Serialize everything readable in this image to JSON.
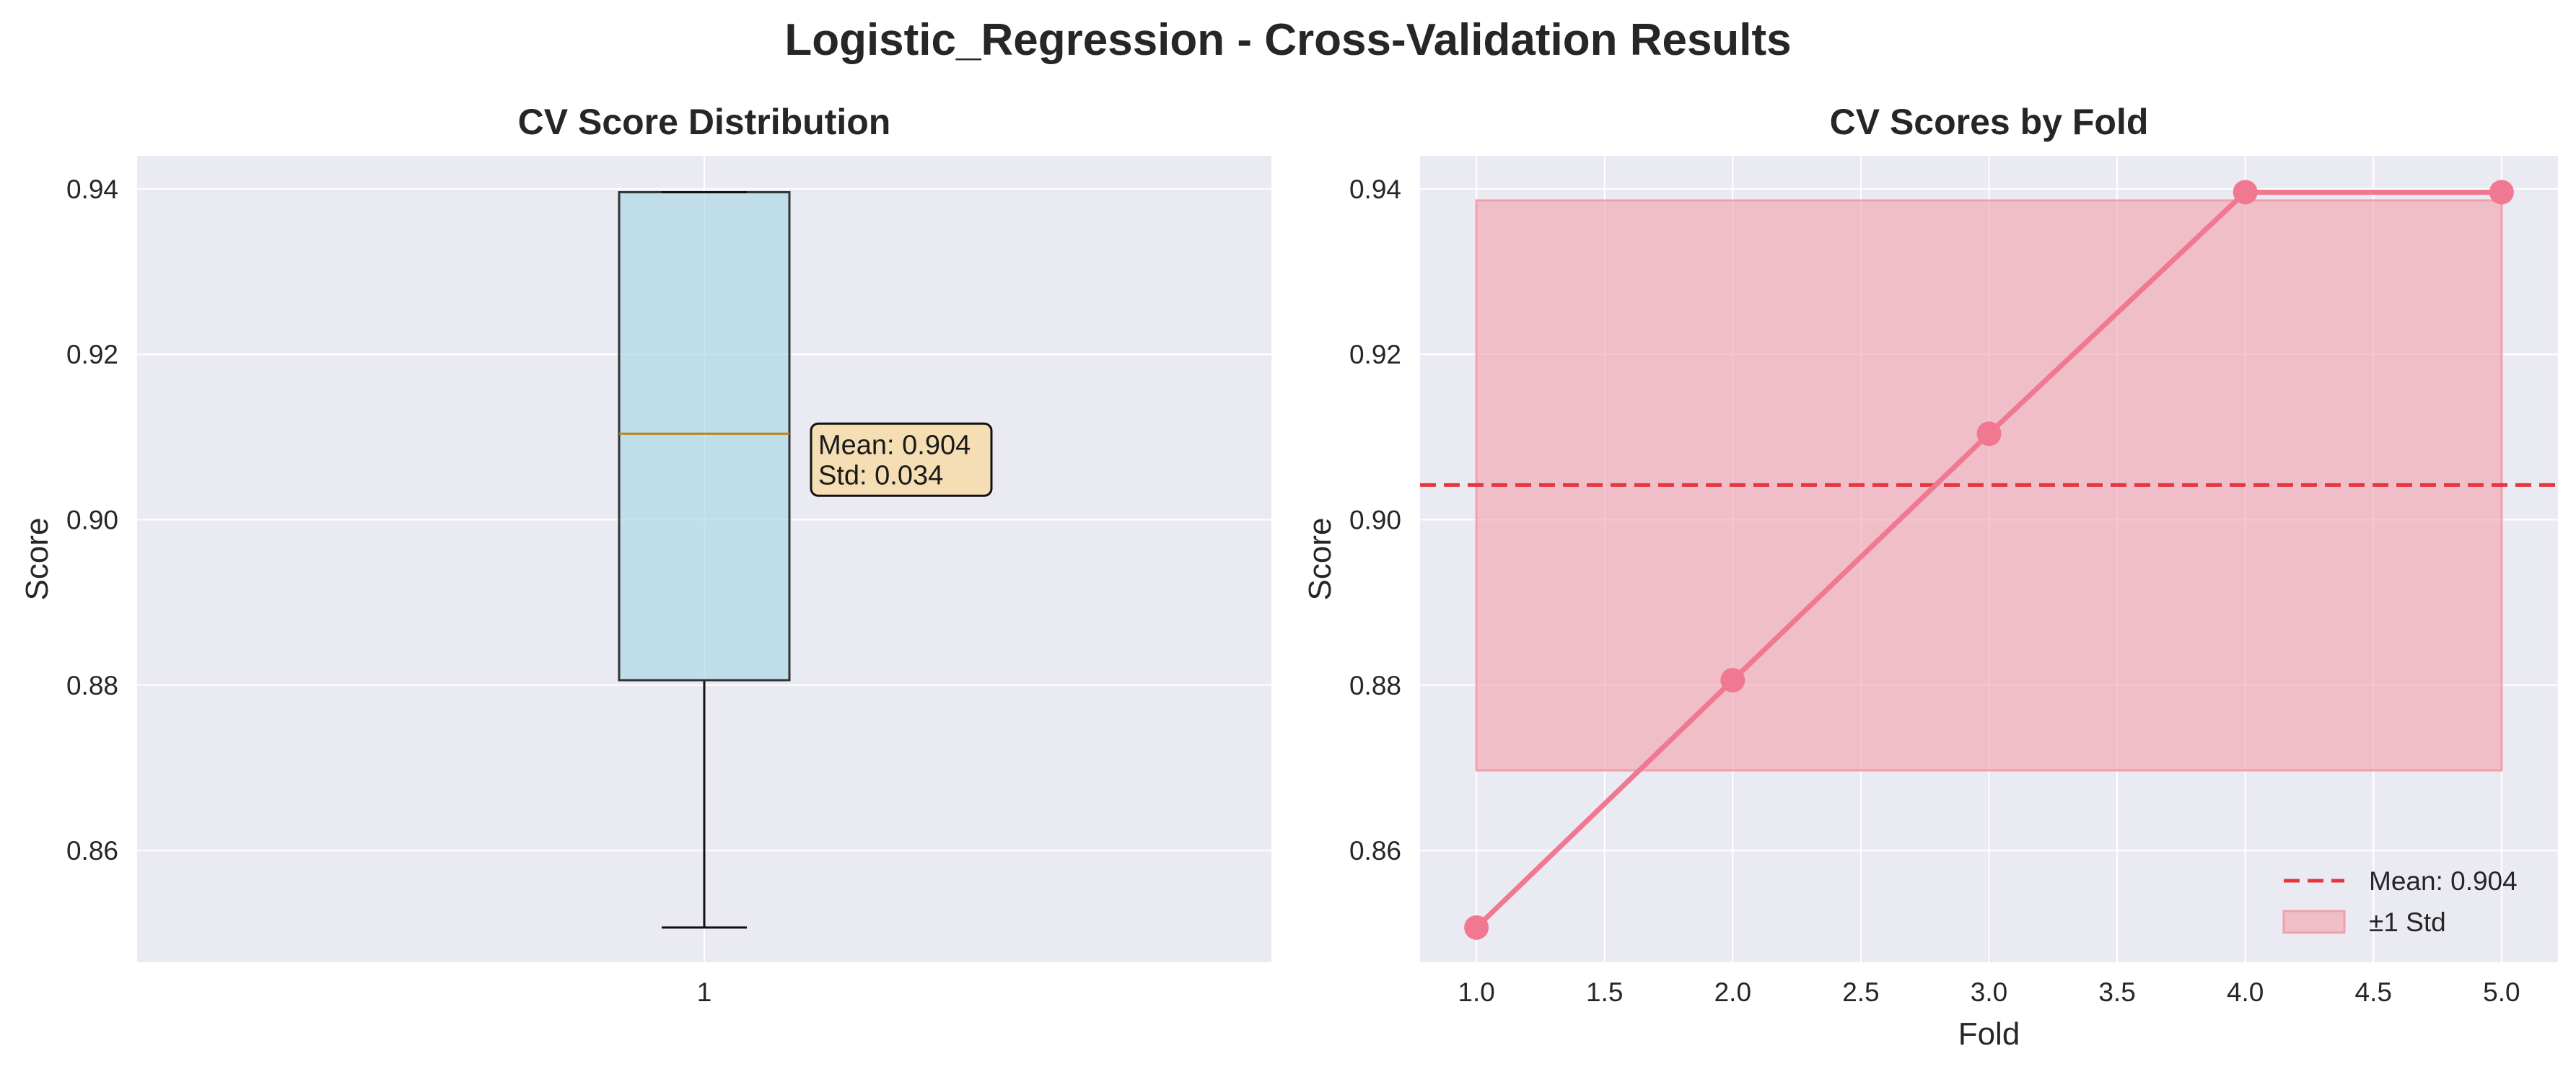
{
  "figure": {
    "title": "Logistic_Regression - Cross-Validation Results",
    "background": "#ffffff",
    "axes_facecolor": "#eaeaf2",
    "grid_color": "#ffffff"
  },
  "chart_data": [
    {
      "type": "box",
      "title": "CV Score Distribution",
      "xlabel": "",
      "ylabel": "Score",
      "ylim": [
        0.8465,
        0.944
      ],
      "yticks": [
        "0.86",
        "0.88",
        "0.90",
        "0.92",
        "0.94"
      ],
      "xticks": [
        "1"
      ],
      "grid": true,
      "box": {
        "category": "1",
        "whisker_low": 0.8507,
        "q1": 0.8806,
        "median": 0.9104,
        "q3": 0.9396,
        "whisker_high": 0.9396,
        "box_color": "#add8e6",
        "median_color": "#b8860b"
      },
      "annotation": {
        "lines": [
          "Mean: 0.904",
          "Std: 0.034"
        ],
        "box_color": "#f5deb3"
      }
    },
    {
      "type": "line",
      "title": "CV Scores by Fold",
      "xlabel": "Fold",
      "ylabel": "Score",
      "xlim": [
        0.78,
        5.22
      ],
      "ylim": [
        0.8465,
        0.944
      ],
      "xticks": [
        "1.0",
        "1.5",
        "2.0",
        "2.5",
        "3.0",
        "3.5",
        "4.0",
        "4.5",
        "5.0"
      ],
      "yticks": [
        "0.86",
        "0.88",
        "0.90",
        "0.92",
        "0.94"
      ],
      "grid": true,
      "legend_position": "lower-right",
      "series": [
        {
          "x": [
            1,
            2,
            3,
            4,
            5
          ],
          "values": [
            0.8507,
            0.8806,
            0.9104,
            0.9396,
            0.9396
          ],
          "color": "#f07890"
        }
      ],
      "mean_line": {
        "label": "Mean: 0.904",
        "value": 0.9042,
        "color": "#e8363e"
      },
      "std_band": {
        "label": "±1 Std",
        "low": 0.8697,
        "high": 0.9386,
        "x_range": [
          1,
          5
        ],
        "color": "#f2a0ab"
      }
    }
  ]
}
